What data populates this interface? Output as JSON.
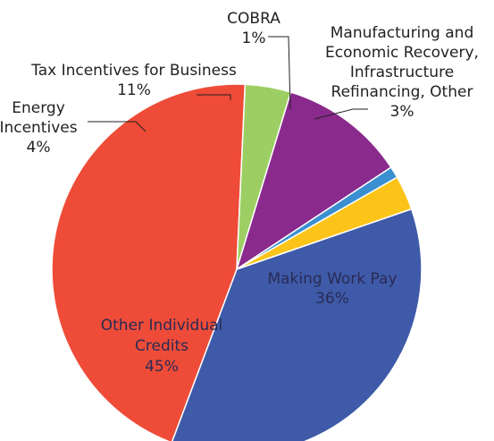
{
  "chart_data": {
    "type": "pie",
    "title": "",
    "slices": [
      {
        "label_lines": [
          "Making Work Pay"
        ],
        "pct_label": "36%",
        "value": 36,
        "color": "#3e5aa8"
      },
      {
        "label_lines": [
          "Other Individual",
          "Credits"
        ],
        "pct_label": "45%",
        "value": 45,
        "color": "#ee4c38"
      },
      {
        "label_lines": [
          "Energy",
          "Incentives"
        ],
        "pct_label": "4%",
        "value": 4,
        "color": "#9dce63"
      },
      {
        "label_lines": [
          "Tax Incentives for Business"
        ],
        "pct_label": "11%",
        "value": 11,
        "color": "#8a2a8c"
      },
      {
        "label_lines": [
          "COBRA"
        ],
        "pct_label": "1%",
        "value": 1,
        "color": "#3a8fd0"
      },
      {
        "label_lines": [
          "Manufacturing and",
          "Economic Recovery,",
          "Infrastructure",
          "Refinancing, Other"
        ],
        "pct_label": "3%",
        "value": 3,
        "color": "#fcc419"
      }
    ],
    "text_color": "#231f20",
    "inside_label_color": "#2a2a55"
  }
}
